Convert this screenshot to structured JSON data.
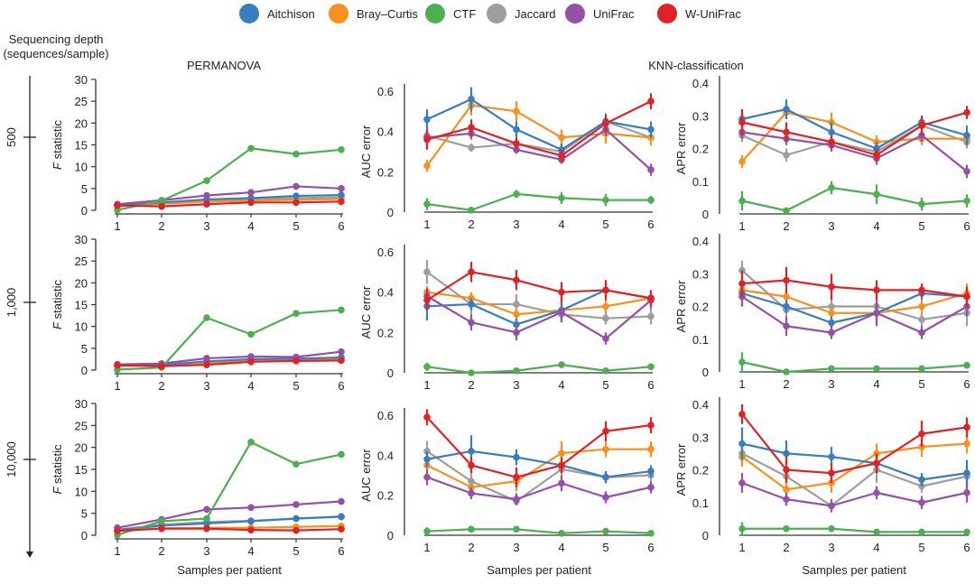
{
  "legend": [
    {
      "name": "Aitchison",
      "color": "#3a7dbf"
    },
    {
      "name": "Bray–Curtis",
      "color": "#f7901e"
    },
    {
      "name": "CTF",
      "color": "#4caf50"
    },
    {
      "name": "Jaccard",
      "color": "#9e9e9e"
    },
    {
      "name": "UniFrac",
      "color": "#9550a8"
    },
    {
      "name": "W-UniFrac",
      "color": "#e02226"
    }
  ],
  "labels": {
    "depth_axis_title_line1": "Sequencing depth",
    "depth_axis_title_line2": "(sequences/sample)",
    "permanova_title": "PERMANOVA",
    "knn_title": "KNN-classification",
    "depth_levels": [
      "500",
      "1,000",
      "10,000"
    ],
    "f_ylabel_italic": "F",
    "f_ylabel_rest": " statistic",
    "auc_ylabel": "AUC error",
    "apr_ylabel": "APR error",
    "xlabel": "Samples per patient"
  },
  "chart_data": [
    {
      "type": "line",
      "panel": "PERMANOVA",
      "depth": "500",
      "title": "PERMANOVA",
      "xlabel": "",
      "ylabel": "F statistic",
      "x": [
        1,
        2,
        3,
        4,
        5,
        6
      ],
      "ylim": [
        0,
        30
      ],
      "yticks": [
        0,
        5,
        10,
        15,
        20,
        25,
        30
      ],
      "series": [
        {
          "name": "Aitchison",
          "values": [
            1.2,
            1.8,
            2.5,
            2.8,
            3.3,
            3.5
          ]
        },
        {
          "name": "Bray–Curtis",
          "values": [
            1.0,
            1.5,
            2.0,
            2.2,
            2.4,
            2.6
          ]
        },
        {
          "name": "CTF",
          "values": [
            0.1,
            2.2,
            6.8,
            14.2,
            12.9,
            13.9
          ]
        },
        {
          "name": "Jaccard",
          "values": [
            1.1,
            1.7,
            2.3,
            2.5,
            2.8,
            3.0
          ]
        },
        {
          "name": "UniFrac",
          "values": [
            1.4,
            2.3,
            3.4,
            4.1,
            5.5,
            5.0
          ]
        },
        {
          "name": "W-UniFrac",
          "values": [
            1.1,
            0.9,
            1.4,
            1.8,
            1.8,
            2.0
          ]
        }
      ]
    },
    {
      "type": "line",
      "panel": "KNN AUC",
      "depth": "500",
      "title": "",
      "xlabel": "",
      "ylabel": "AUC error",
      "x": [
        1,
        2,
        3,
        4,
        5,
        6
      ],
      "ylim": [
        0,
        0.6
      ],
      "yticks": [
        0,
        0.2,
        0.4,
        0.6
      ],
      "series": [
        {
          "name": "Aitchison",
          "values": [
            0.46,
            0.56,
            0.41,
            0.31,
            0.45,
            0.41
          ],
          "err": [
            0.05,
            0.06,
            0.04,
            0.03,
            0.04,
            0.04
          ]
        },
        {
          "name": "Bray–Curtis",
          "values": [
            0.23,
            0.53,
            0.5,
            0.37,
            0.39,
            0.37
          ],
          "err": [
            0.03,
            0.05,
            0.05,
            0.04,
            0.05,
            0.04
          ]
        },
        {
          "name": "CTF",
          "values": [
            0.04,
            0.01,
            0.09,
            0.07,
            0.06,
            0.06
          ],
          "err": [
            0.03,
            0.01,
            0.02,
            0.03,
            0.03,
            0.02
          ]
        },
        {
          "name": "Jaccard",
          "values": [
            0.38,
            0.32,
            0.34,
            0.3,
            0.45,
            0.37
          ],
          "err": [
            0.03,
            0.02,
            0.02,
            0.02,
            0.03,
            0.03
          ]
        },
        {
          "name": "UniFrac",
          "values": [
            0.37,
            0.39,
            0.31,
            0.26,
            0.41,
            0.21
          ],
          "err": [
            0.03,
            0.03,
            0.02,
            0.02,
            0.03,
            0.03
          ]
        },
        {
          "name": "W-UniFrac",
          "values": [
            0.36,
            0.42,
            0.34,
            0.28,
            0.44,
            0.55
          ],
          "err": [
            0.05,
            0.04,
            0.03,
            0.03,
            0.04,
            0.04
          ]
        }
      ]
    },
    {
      "type": "line",
      "panel": "KNN APR",
      "depth": "500",
      "title": "KNN-classification",
      "xlabel": "",
      "ylabel": "APR error",
      "x": [
        1,
        2,
        3,
        4,
        5,
        6
      ],
      "ylim": [
        0,
        0.4
      ],
      "yticks": [
        0,
        0.1,
        0.2,
        0.3,
        0.4
      ],
      "series": [
        {
          "name": "Aitchison",
          "values": [
            0.29,
            0.32,
            0.25,
            0.2,
            0.28,
            0.24
          ],
          "err": [
            0.03,
            0.03,
            0.03,
            0.02,
            0.02,
            0.03
          ]
        },
        {
          "name": "Bray–Curtis",
          "values": [
            0.16,
            0.31,
            0.28,
            0.22,
            0.23,
            0.23
          ],
          "err": [
            0.02,
            0.02,
            0.03,
            0.02,
            0.02,
            0.02
          ]
        },
        {
          "name": "CTF",
          "values": [
            0.04,
            0.01,
            0.08,
            0.06,
            0.03,
            0.04
          ],
          "err": [
            0.03,
            0.01,
            0.02,
            0.03,
            0.02,
            0.02
          ]
        },
        {
          "name": "Jaccard",
          "values": [
            0.24,
            0.18,
            0.22,
            0.19,
            0.27,
            0.22
          ],
          "err": [
            0.02,
            0.02,
            0.02,
            0.02,
            0.02,
            0.02
          ]
        },
        {
          "name": "UniFrac",
          "values": [
            0.25,
            0.23,
            0.21,
            0.17,
            0.24,
            0.13
          ],
          "err": [
            0.02,
            0.02,
            0.02,
            0.02,
            0.02,
            0.02
          ]
        },
        {
          "name": "W-UniFrac",
          "values": [
            0.28,
            0.25,
            0.22,
            0.18,
            0.27,
            0.31
          ],
          "err": [
            0.04,
            0.03,
            0.02,
            0.02,
            0.03,
            0.02
          ]
        }
      ]
    },
    {
      "type": "line",
      "panel": "PERMANOVA",
      "depth": "1,000",
      "title": "",
      "xlabel": "",
      "ylabel": "F statistic",
      "x": [
        1,
        2,
        3,
        4,
        5,
        6
      ],
      "ylim": [
        0,
        30
      ],
      "yticks": [
        0,
        5,
        10,
        15,
        20,
        25,
        30
      ],
      "series": [
        {
          "name": "Aitchison",
          "values": [
            1.2,
            1.2,
            2.0,
            2.5,
            2.6,
            2.9
          ]
        },
        {
          "name": "Bray–Curtis",
          "values": [
            1.0,
            1.0,
            1.5,
            2.0,
            2.2,
            2.4
          ]
        },
        {
          "name": "CTF",
          "values": [
            0.1,
            0.6,
            12.0,
            8.2,
            13.0,
            13.8
          ]
        },
        {
          "name": "Jaccard",
          "values": [
            1.1,
            1.2,
            1.8,
            2.3,
            2.6,
            2.8
          ]
        },
        {
          "name": "UniFrac",
          "values": [
            1.3,
            1.5,
            2.7,
            3.1,
            3.0,
            4.2
          ]
        },
        {
          "name": "W-UniFrac",
          "values": [
            1.1,
            0.9,
            1.2,
            1.9,
            2.1,
            2.2
          ]
        }
      ]
    },
    {
      "type": "line",
      "panel": "KNN AUC",
      "depth": "1,000",
      "title": "",
      "xlabel": "",
      "ylabel": "AUC error",
      "x": [
        1,
        2,
        3,
        4,
        5,
        6
      ],
      "ylim": [
        0,
        0.6
      ],
      "yticks": [
        0,
        0.2,
        0.4,
        0.6
      ],
      "series": [
        {
          "name": "Aitchison",
          "values": [
            0.33,
            0.34,
            0.24,
            0.31,
            0.41,
            0.37
          ],
          "err": [
            0.07,
            0.03,
            0.03,
            0.05,
            0.04,
            0.04
          ]
        },
        {
          "name": "Bray–Curtis",
          "values": [
            0.4,
            0.37,
            0.29,
            0.31,
            0.33,
            0.37
          ],
          "err": [
            0.03,
            0.03,
            0.03,
            0.03,
            0.03,
            0.03
          ]
        },
        {
          "name": "CTF",
          "values": [
            0.03,
            0.0,
            0.01,
            0.04,
            0.01,
            0.03
          ],
          "err": [
            0.02,
            0.01,
            0.01,
            0.01,
            0.01,
            0.01
          ]
        },
        {
          "name": "Jaccard",
          "values": [
            0.5,
            0.34,
            0.34,
            0.29,
            0.27,
            0.28
          ],
          "err": [
            0.06,
            0.05,
            0.05,
            0.04,
            0.03,
            0.04
          ]
        },
        {
          "name": "UniFrac",
          "values": [
            0.38,
            0.25,
            0.2,
            0.3,
            0.17,
            0.36
          ],
          "err": [
            0.04,
            0.04,
            0.04,
            0.05,
            0.03,
            0.04
          ]
        },
        {
          "name": "W-UniFrac",
          "values": [
            0.36,
            0.5,
            0.46,
            0.4,
            0.41,
            0.37
          ],
          "err": [
            0.05,
            0.05,
            0.05,
            0.05,
            0.05,
            0.04
          ]
        }
      ]
    },
    {
      "type": "line",
      "panel": "KNN APR",
      "depth": "1,000",
      "title": "",
      "xlabel": "",
      "ylabel": "APR error",
      "x": [
        1,
        2,
        3,
        4,
        5,
        6
      ],
      "ylim": [
        0,
        0.4
      ],
      "yticks": [
        0,
        0.1,
        0.2,
        0.3,
        0.4
      ],
      "series": [
        {
          "name": "Aitchison",
          "values": [
            0.24,
            0.2,
            0.15,
            0.18,
            0.24,
            0.23
          ],
          "err": [
            0.04,
            0.02,
            0.02,
            0.03,
            0.02,
            0.03
          ]
        },
        {
          "name": "Bray–Curtis",
          "values": [
            0.25,
            0.23,
            0.18,
            0.18,
            0.2,
            0.24
          ],
          "err": [
            0.02,
            0.02,
            0.02,
            0.02,
            0.02,
            0.03
          ]
        },
        {
          "name": "CTF",
          "values": [
            0.03,
            0.0,
            0.01,
            0.01,
            0.01,
            0.02
          ],
          "err": [
            0.03,
            0.01,
            0.01,
            0.01,
            0.01,
            0.01
          ]
        },
        {
          "name": "Jaccard",
          "values": [
            0.31,
            0.19,
            0.2,
            0.2,
            0.16,
            0.18
          ],
          "err": [
            0.03,
            0.02,
            0.03,
            0.03,
            0.02,
            0.04
          ]
        },
        {
          "name": "UniFrac",
          "values": [
            0.23,
            0.14,
            0.12,
            0.18,
            0.12,
            0.2
          ],
          "err": [
            0.03,
            0.03,
            0.02,
            0.04,
            0.02,
            0.03
          ]
        },
        {
          "name": "W-UniFrac",
          "values": [
            0.27,
            0.28,
            0.26,
            0.25,
            0.25,
            0.23
          ],
          "err": [
            0.04,
            0.04,
            0.04,
            0.03,
            0.02,
            0.03
          ]
        }
      ]
    },
    {
      "type": "line",
      "panel": "PERMANOVA",
      "depth": "10,000",
      "title": "",
      "xlabel": "Samples per patient",
      "ylabel": "F statistic",
      "x": [
        1,
        2,
        3,
        4,
        5,
        6
      ],
      "ylim": [
        0,
        30
      ],
      "yticks": [
        0,
        5,
        10,
        15,
        20,
        25,
        30
      ],
      "series": [
        {
          "name": "Aitchison",
          "values": [
            1.2,
            2.2,
            2.7,
            3.2,
            3.8,
            4.2
          ]
        },
        {
          "name": "Bray–Curtis",
          "values": [
            1.0,
            1.6,
            1.7,
            1.7,
            1.9,
            2.1
          ]
        },
        {
          "name": "CTF",
          "values": [
            0.1,
            3.2,
            3.8,
            21.2,
            16.2,
            18.4
          ]
        },
        {
          "name": "Jaccard",
          "values": [
            1.3,
            2.4,
            3.0,
            3.3,
            3.8,
            4.3
          ]
        },
        {
          "name": "UniFrac",
          "values": [
            1.7,
            3.6,
            5.9,
            6.3,
            7.0,
            7.7
          ]
        },
        {
          "name": "W-UniFrac",
          "values": [
            1.0,
            1.5,
            1.5,
            1.2,
            1.1,
            1.4
          ]
        }
      ]
    },
    {
      "type": "line",
      "panel": "KNN AUC",
      "depth": "10,000",
      "title": "",
      "xlabel": "Samples per patient",
      "ylabel": "AUC error",
      "x": [
        1,
        2,
        3,
        4,
        5,
        6
      ],
      "ylim": [
        0,
        0.6
      ],
      "yticks": [
        0,
        0.2,
        0.4,
        0.6
      ],
      "series": [
        {
          "name": "Aitchison",
          "values": [
            0.38,
            0.42,
            0.39,
            0.35,
            0.29,
            0.32
          ],
          "err": [
            0.04,
            0.08,
            0.04,
            0.03,
            0.03,
            0.03
          ]
        },
        {
          "name": "Bray–Curtis",
          "values": [
            0.35,
            0.24,
            0.27,
            0.41,
            0.43,
            0.43
          ],
          "err": [
            0.04,
            0.02,
            0.05,
            0.06,
            0.04,
            0.04
          ]
        },
        {
          "name": "CTF",
          "values": [
            0.02,
            0.03,
            0.03,
            0.01,
            0.02,
            0.01
          ],
          "err": [
            0.02,
            0.01,
            0.01,
            0.01,
            0.01,
            0.01
          ]
        },
        {
          "name": "Jaccard",
          "values": [
            0.42,
            0.27,
            0.17,
            0.33,
            0.29,
            0.3
          ],
          "err": [
            0.05,
            0.04,
            0.02,
            0.03,
            0.03,
            0.03
          ]
        },
        {
          "name": "UniFrac",
          "values": [
            0.29,
            0.21,
            0.18,
            0.26,
            0.19,
            0.24
          ],
          "err": [
            0.04,
            0.03,
            0.03,
            0.04,
            0.03,
            0.03
          ]
        },
        {
          "name": "W-UniFrac",
          "values": [
            0.59,
            0.35,
            0.29,
            0.35,
            0.52,
            0.55
          ],
          "err": [
            0.04,
            0.04,
            0.05,
            0.04,
            0.05,
            0.04
          ]
        }
      ]
    },
    {
      "type": "line",
      "panel": "KNN APR",
      "depth": "10,000",
      "title": "",
      "xlabel": "Samples per patient",
      "ylabel": "APR error",
      "x": [
        1,
        2,
        3,
        4,
        5,
        6
      ],
      "ylim": [
        0,
        0.4
      ],
      "yticks": [
        0,
        0.1,
        0.2,
        0.3,
        0.4
      ],
      "series": [
        {
          "name": "Aitchison",
          "values": [
            0.28,
            0.25,
            0.24,
            0.22,
            0.17,
            0.19
          ],
          "err": [
            0.05,
            0.04,
            0.03,
            0.02,
            0.02,
            0.04
          ]
        },
        {
          "name": "Bray–Curtis",
          "values": [
            0.24,
            0.14,
            0.16,
            0.25,
            0.27,
            0.28
          ],
          "err": [
            0.03,
            0.02,
            0.03,
            0.03,
            0.03,
            0.03
          ]
        },
        {
          "name": "CTF",
          "values": [
            0.02,
            0.02,
            0.02,
            0.01,
            0.01,
            0.01
          ],
          "err": [
            0.02,
            0.01,
            0.01,
            0.01,
            0.01,
            0.01
          ]
        },
        {
          "name": "Jaccard",
          "values": [
            0.25,
            0.18,
            0.09,
            0.2,
            0.15,
            0.18
          ],
          "err": [
            0.03,
            0.03,
            0.01,
            0.04,
            0.02,
            0.03
          ]
        },
        {
          "name": "UniFrac",
          "values": [
            0.16,
            0.11,
            0.09,
            0.13,
            0.1,
            0.13
          ],
          "err": [
            0.03,
            0.02,
            0.02,
            0.02,
            0.02,
            0.03
          ]
        },
        {
          "name": "W-UniFrac",
          "values": [
            0.37,
            0.2,
            0.19,
            0.22,
            0.31,
            0.33
          ],
          "err": [
            0.03,
            0.04,
            0.03,
            0.03,
            0.04,
            0.03
          ]
        }
      ]
    }
  ]
}
